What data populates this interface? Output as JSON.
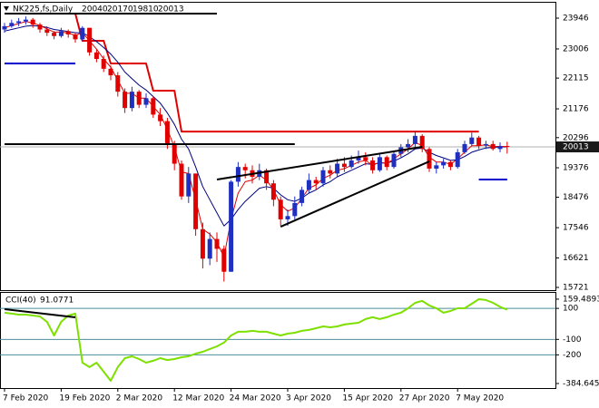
{
  "chart_data": [
    {
      "type": "candlestick",
      "title": "NK225,fs,Daily",
      "categories": [
        "7 Feb 2020",
        null,
        null,
        null,
        null,
        null,
        null,
        null,
        "19 Feb 2020",
        null,
        null,
        null,
        null,
        null,
        null,
        null,
        "2 Mar 2020",
        null,
        null,
        null,
        null,
        null,
        null,
        null,
        "12 Mar 2020",
        null,
        null,
        null,
        null,
        null,
        null,
        null,
        "24 Mar 2020",
        null,
        null,
        null,
        null,
        null,
        null,
        null,
        "3 Apr 2020",
        null,
        null,
        null,
        null,
        null,
        null,
        null,
        "15 Apr 2020",
        null,
        null,
        null,
        null,
        null,
        null,
        null,
        "27 Apr 2020",
        null,
        null,
        null,
        null,
        null,
        null,
        null,
        "7 May 2020",
        null,
        null,
        null,
        null,
        null,
        null,
        null
      ],
      "open": [
        23600,
        23700,
        23800,
        23850,
        23900,
        23750,
        23600,
        23500,
        23400,
        23550,
        23450,
        23300,
        23650,
        22900,
        22700,
        22400,
        22200,
        21700,
        21200,
        21700,
        21300,
        21500,
        21000,
        20800,
        20100,
        19500,
        18500,
        19200,
        17500,
        16600,
        17200,
        16900,
        16200,
        18950,
        19400,
        19300,
        19100,
        19300,
        18900,
        18400,
        17800,
        17900,
        18300,
        18700,
        19000,
        18900,
        19300,
        19200,
        19500,
        19400,
        19600,
        19700,
        19600,
        19300,
        19700,
        19400,
        19800,
        20000,
        20100,
        20350,
        19950,
        19350,
        19450,
        19550,
        19400,
        19850,
        20100,
        20300,
        20050,
        20100,
        19950,
        20040
      ],
      "high": [
        23800,
        23900,
        23950,
        24000,
        23950,
        23800,
        23700,
        23550,
        23650,
        23600,
        23500,
        23700,
        23650,
        23000,
        22800,
        22500,
        22300,
        21800,
        21850,
        21750,
        21650,
        21550,
        21200,
        20900,
        20200,
        19600,
        19400,
        19200,
        17700,
        17400,
        17400,
        17000,
        19000,
        19550,
        19500,
        19450,
        19500,
        19350,
        19000,
        18500,
        18100,
        18500,
        18800,
        19200,
        19100,
        19400,
        19450,
        19650,
        19700,
        19750,
        19900,
        19850,
        19700,
        19800,
        19750,
        19900,
        20100,
        20250,
        20500,
        20400,
        20000,
        19550,
        19650,
        19600,
        19950,
        20200,
        20450,
        20350,
        20200,
        20200,
        20150,
        20170
      ],
      "low": [
        23500,
        23650,
        23700,
        23750,
        23650,
        23500,
        23400,
        23300,
        23350,
        23350,
        23200,
        23250,
        22800,
        22600,
        22300,
        22050,
        21550,
        21050,
        21100,
        21200,
        21200,
        20900,
        20650,
        19950,
        19300,
        18400,
        18300,
        17300,
        16300,
        16400,
        16500,
        15900,
        16200,
        18800,
        19050,
        18900,
        19000,
        18700,
        18200,
        17600,
        17600,
        17800,
        18200,
        18600,
        18700,
        18800,
        19050,
        19100,
        19250,
        19350,
        19500,
        19450,
        19200,
        19250,
        19300,
        19350,
        19700,
        19850,
        20000,
        19850,
        19250,
        19200,
        19350,
        19300,
        19350,
        19800,
        20050,
        19950,
        19950,
        19900,
        19850,
        19810
      ],
      "close": [
        23700,
        23800,
        23850,
        23900,
        23750,
        23600,
        23500,
        23400,
        23550,
        23450,
        23300,
        23650,
        22900,
        22700,
        22400,
        22200,
        21700,
        21200,
        21700,
        21300,
        21500,
        21000,
        20800,
        20100,
        19500,
        18500,
        19200,
        17500,
        16600,
        17200,
        16900,
        16200,
        18950,
        19400,
        19300,
        19100,
        19300,
        18900,
        18400,
        17800,
        17900,
        18300,
        18700,
        19000,
        18900,
        19300,
        19200,
        19500,
        19400,
        19600,
        19700,
        19600,
        19300,
        19700,
        19400,
        19800,
        20000,
        20100,
        20350,
        19950,
        19350,
        19450,
        19550,
        19400,
        19850,
        20100,
        20300,
        20050,
        20100,
        19950,
        20040,
        20013
      ],
      "up_color": "#1f2fc0",
      "down_color": "#e00000",
      "series": [
        {
          "color": "#e00000",
          "width": 2,
          "values": [
            24085,
            24085,
            24085,
            24085,
            24085,
            24085,
            24085,
            24085,
            24085,
            24085,
            24085,
            23254,
            23254,
            23254,
            23254,
            22561,
            22561,
            22561,
            22561,
            22561,
            22561,
            21730,
            21730,
            21730,
            21730,
            20483,
            20483,
            20483,
            20483,
            20483,
            20483,
            20483,
            20483,
            20483,
            20483,
            20483,
            20483,
            20483,
            20483,
            20483,
            20483,
            20483,
            20483,
            20483,
            20483,
            20483,
            20483,
            20483,
            20483,
            20483,
            20483,
            20483,
            20483,
            20483,
            20483,
            20483,
            20483,
            20483,
            20483,
            20483,
            20483,
            20483,
            20483,
            20483,
            20483,
            20483,
            20483,
            20483,
            null,
            null,
            null,
            null
          ]
        },
        {
          "color": "#000080",
          "width": 1,
          "values": [
            23550,
            23600,
            23650,
            23700,
            23720,
            23700,
            23660,
            23600,
            23570,
            23540,
            23500,
            23500,
            23380,
            23230,
            23050,
            22850,
            22600,
            22300,
            22100,
            21900,
            21750,
            21550,
            21350,
            21050,
            20700,
            20250,
            19950,
            19400,
            18800,
            18400,
            18000,
            17600,
            17800,
            18100,
            18350,
            18550,
            18750,
            18800,
            18750,
            18550,
            18400,
            18350,
            18450,
            18600,
            18700,
            18850,
            18950,
            19100,
            19200,
            19300,
            19400,
            19500,
            19480,
            19520,
            19520,
            19580,
            19680,
            19800,
            19950,
            19980,
            19850,
            19750,
            19680,
            19600,
            19620,
            19720,
            19850,
            19920,
            19980,
            20000,
            20010,
            20015
          ]
        },
        {
          "color": "#e00000",
          "width": 1,
          "values": [
            23650,
            23720,
            23780,
            23840,
            23800,
            23720,
            23620,
            23520,
            23520,
            23490,
            23420,
            23500,
            23250,
            23000,
            22700,
            22450,
            22050,
            21650,
            21650,
            21500,
            21500,
            21250,
            21000,
            20550,
            20000,
            19250,
            19200,
            18400,
            17500,
            17350,
            17100,
            16650,
            17800,
            18600,
            18950,
            19000,
            19150,
            19000,
            18700,
            18250,
            18050,
            18150,
            18450,
            18750,
            18850,
            19050,
            19150,
            19300,
            19350,
            19450,
            19550,
            19600,
            19450,
            19550,
            19500,
            19650,
            19800,
            19950,
            20150,
            20050,
            19700,
            19550,
            19550,
            19480,
            19650,
            19850,
            20050,
            20050,
            20080,
            20020,
            20030,
            20020
          ]
        }
      ],
      "lines": [
        {
          "color": "#000000",
          "x": [
            0,
            30
          ],
          "y": [
            24085,
            24085
          ]
        },
        {
          "color": "#000000",
          "x": [
            0,
            41
          ],
          "y": [
            20096,
            20096
          ]
        },
        {
          "color": "#000000",
          "x": [
            30,
            59
          ],
          "y": [
            19017,
            20013
          ]
        },
        {
          "color": "#000000",
          "x": [
            39,
            60
          ],
          "y": [
            17576,
            19570
          ]
        },
        {
          "color": "#0000cd",
          "x": [
            0,
            10
          ],
          "y": [
            22561,
            22561
          ]
        },
        {
          "color": "#0000cd",
          "x": [
            67,
            71
          ],
          "y": [
            19017,
            19017
          ]
        }
      ],
      "ylim": [
        15638,
        24445
      ],
      "yticks": [
        23946,
        23006,
        22115,
        21176,
        20296,
        19376,
        18476,
        17546,
        16621,
        15721
      ],
      "grid": false
    },
    {
      "type": "line",
      "title": "CCI(40)",
      "color": "#7ee000",
      "values": [
        72,
        66,
        60,
        60,
        54,
        48,
        13,
        -75,
        13,
        54,
        66,
        -250,
        -279,
        -250,
        -308,
        -367,
        -279,
        -221,
        -209,
        -227,
        -250,
        -238,
        -221,
        -233,
        -227,
        -215,
        -209,
        -192,
        -180,
        -162,
        -145,
        -121,
        -75,
        -51,
        -51,
        -45,
        -51,
        -51,
        -63,
        -75,
        -63,
        -57,
        -45,
        -39,
        -28,
        -16,
        -22,
        -16,
        -4,
        2,
        7,
        31,
        43,
        31,
        43,
        60,
        72,
        101,
        136,
        148,
        119,
        101,
        72,
        83,
        101,
        101,
        130,
        159,
        154,
        136,
        110,
        91.0771
      ],
      "lines": [
        {
          "color": "#000000",
          "x": [
            0,
            10
          ],
          "y": [
            95,
            42.5
          ]
        }
      ],
      "ylim": [
        -414,
        206
      ],
      "yticks": [
        159.4893,
        100,
        -100,
        -200,
        -384.6458
      ],
      "grid": false
    }
  ]
}
